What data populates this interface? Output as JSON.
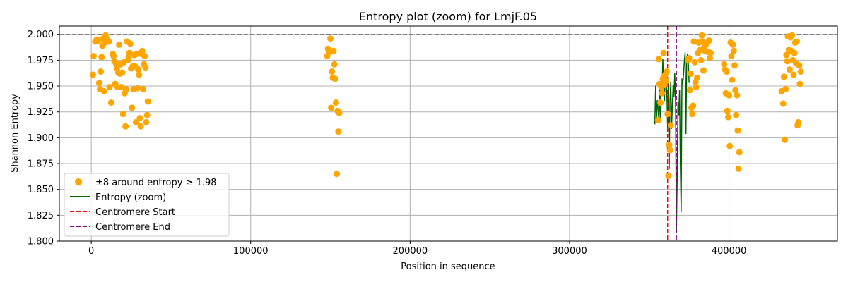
{
  "chart_data": {
    "type": "scatter",
    "title": "Entropy plot (zoom) for LmjF.05",
    "xlabel": "Position in sequence",
    "ylabel": "Shannon Entropy",
    "xlim": [
      -20000,
      468000
    ],
    "ylim": [
      1.8,
      2.008
    ],
    "xticks": [
      0,
      100000,
      200000,
      300000,
      400000
    ],
    "xtick_labels": [
      "0",
      "100000",
      "200000",
      "300000",
      "400000"
    ],
    "yticks": [
      1.8,
      1.825,
      1.85,
      1.875,
      1.9,
      1.925,
      1.95,
      1.975,
      2.0
    ],
    "ytick_labels": [
      "1.800",
      "1.825",
      "1.850",
      "1.875",
      "1.900",
      "1.925",
      "1.950",
      "1.975",
      "2.000"
    ],
    "grid": true,
    "legend_position": "lower-left",
    "colors": {
      "points": "#ffa500",
      "line": "#006400",
      "centromere_start": "#ff0000",
      "centromere_end": "#800080",
      "reference": "#808080",
      "grid": "#b0b0b0"
    },
    "reference_line": {
      "y": 2.0
    },
    "centromere": {
      "start": 361500,
      "end": 367000
    },
    "series": [
      {
        "name": "±8 around entropy ≥ 1.98",
        "kind": "scatter",
        "points": [
          [
            1000,
            1.961
          ],
          [
            1500,
            1.979
          ],
          [
            2500,
            1.993
          ],
          [
            3500,
            1.995
          ],
          [
            4500,
            1.994
          ],
          [
            5000,
            1.953
          ],
          [
            5500,
            1.947
          ],
          [
            6000,
            1.964
          ],
          [
            6500,
            1.978
          ],
          [
            7000,
            1.989
          ],
          [
            7500,
            1.996
          ],
          [
            8000,
            1.945
          ],
          [
            8500,
            1.992
          ],
          [
            9000,
            1.999
          ],
          [
            10000,
            1.995
          ],
          [
            11000,
            1.993
          ],
          [
            11500,
            1.949
          ],
          [
            12500,
            1.934
          ],
          [
            13500,
            1.981
          ],
          [
            14000,
            1.979
          ],
          [
            14500,
            1.974
          ],
          [
            15000,
            1.952
          ],
          [
            15500,
            1.972
          ],
          [
            16000,
            1.967
          ],
          [
            16500,
            1.949
          ],
          [
            17000,
            1.963
          ],
          [
            17500,
            1.99
          ],
          [
            18000,
            1.962
          ],
          [
            18500,
            1.971
          ],
          [
            19000,
            1.949
          ],
          [
            19500,
            1.963
          ],
          [
            20000,
            1.923
          ],
          [
            20500,
            1.973
          ],
          [
            21000,
            1.943
          ],
          [
            21500,
            1.911
          ],
          [
            22000,
            1.947
          ],
          [
            22500,
            1.993
          ],
          [
            23000,
            1.975
          ],
          [
            23500,
            1.978
          ],
          [
            24000,
            1.982
          ],
          [
            24500,
            1.991
          ],
          [
            25000,
            1.967
          ],
          [
            25500,
            1.929
          ],
          [
            26000,
            1.969
          ],
          [
            26500,
            1.947
          ],
          [
            27000,
            1.98
          ],
          [
            27500,
            1.969
          ],
          [
            28000,
            1.915
          ],
          [
            28500,
            1.981
          ],
          [
            29000,
            1.948
          ],
          [
            29500,
            1.966
          ],
          [
            30000,
            1.961
          ],
          [
            30500,
            1.919
          ],
          [
            31000,
            1.911
          ],
          [
            31500,
            1.981
          ],
          [
            32000,
            1.984
          ],
          [
            32500,
            1.947
          ],
          [
            33000,
            1.971
          ],
          [
            33500,
            1.979
          ],
          [
            34000,
            1.968
          ],
          [
            34500,
            1.915
          ],
          [
            35000,
            1.922
          ],
          [
            35500,
            1.935
          ],
          [
            148000,
            1.979
          ],
          [
            148500,
            1.986
          ],
          [
            149500,
            1.983
          ],
          [
            150000,
            1.996
          ],
          [
            150500,
            1.929
          ],
          [
            151000,
            1.964
          ],
          [
            151500,
            1.958
          ],
          [
            152000,
            1.984
          ],
          [
            152500,
            1.971
          ],
          [
            153000,
            1.957
          ],
          [
            153500,
            1.934
          ],
          [
            154000,
            1.865
          ],
          [
            154500,
            1.926
          ],
          [
            155000,
            1.906
          ],
          [
            155500,
            1.924
          ],
          [
            355500,
            1.917
          ],
          [
            356000,
            1.976
          ],
          [
            356500,
            1.952
          ],
          [
            357000,
            1.934
          ],
          [
            357500,
            1.949
          ],
          [
            358000,
            1.943
          ],
          [
            358500,
            1.957
          ],
          [
            359000,
            1.982
          ],
          [
            359500,
            1.951
          ],
          [
            360000,
            1.961
          ],
          [
            360500,
            1.955
          ],
          [
            361000,
            1.964
          ],
          [
            361500,
            1.923
          ],
          [
            362000,
            1.863
          ],
          [
            362500,
            1.893
          ],
          [
            363000,
            1.888
          ],
          [
            363500,
            1.912
          ],
          [
            374500,
            1.975
          ],
          [
            375000,
            1.977
          ],
          [
            375500,
            1.946
          ],
          [
            376000,
            1.962
          ],
          [
            376500,
            1.929
          ],
          [
            377000,
            1.923
          ],
          [
            377500,
            1.931
          ],
          [
            378000,
            1.993
          ],
          [
            378500,
            1.973
          ],
          [
            379000,
            1.954
          ],
          [
            379500,
            1.949
          ],
          [
            380000,
            1.958
          ],
          [
            380500,
            1.982
          ],
          [
            381000,
            1.992
          ],
          [
            382000,
            1.985
          ],
          [
            382500,
            1.975
          ],
          [
            383000,
            1.999
          ],
          [
            383500,
            1.993
          ],
          [
            384000,
            1.965
          ],
          [
            384500,
            1.988
          ],
          [
            385000,
            1.984
          ],
          [
            385500,
            1.99
          ],
          [
            386500,
            1.992
          ],
          [
            387000,
            1.983
          ],
          [
            387500,
            1.994
          ],
          [
            388000,
            1.977
          ],
          [
            388500,
            1.982
          ],
          [
            397000,
            1.971
          ],
          [
            397500,
            1.966
          ],
          [
            398000,
            1.943
          ],
          [
            398500,
            1.964
          ],
          [
            399000,
            1.926
          ],
          [
            399500,
            1.92
          ],
          [
            400000,
            1.941
          ],
          [
            400500,
            1.892
          ],
          [
            401000,
            1.992
          ],
          [
            401500,
            1.979
          ],
          [
            402000,
            1.956
          ],
          [
            402500,
            1.99
          ],
          [
            403000,
            1.984
          ],
          [
            403500,
            1.97
          ],
          [
            404000,
            1.946
          ],
          [
            404500,
            1.922
          ],
          [
            405000,
            1.941
          ],
          [
            405500,
            1.907
          ],
          [
            406000,
            1.87
          ],
          [
            406500,
            1.886
          ],
          [
            433000,
            1.945
          ],
          [
            434000,
            1.933
          ],
          [
            434500,
            1.959
          ],
          [
            435000,
            1.898
          ],
          [
            435500,
            1.947
          ],
          [
            436000,
            1.98
          ],
          [
            436500,
            1.974
          ],
          [
            437000,
            1.998
          ],
          [
            437500,
            1.985
          ],
          [
            438000,
            1.966
          ],
          [
            438500,
            1.997
          ],
          [
            439000,
            1.984
          ],
          [
            439500,
            1.999
          ],
          [
            440000,
            1.975
          ],
          [
            440500,
            1.961
          ],
          [
            441000,
            1.982
          ],
          [
            441500,
            1.992
          ],
          [
            442000,
            1.972
          ],
          [
            442500,
            1.993
          ],
          [
            443000,
            1.912
          ],
          [
            443500,
            1.915
          ],
          [
            444000,
            1.97
          ],
          [
            444500,
            1.952
          ],
          [
            445000,
            1.964
          ]
        ]
      },
      {
        "name": "Entropy (zoom)",
        "kind": "line",
        "points": [
          [
            353500,
            1.913
          ],
          [
            354000,
            1.95
          ],
          [
            354500,
            1.918
          ],
          [
            355000,
            1.936
          ],
          [
            355500,
            1.929
          ],
          [
            356000,
            1.917
          ],
          [
            356500,
            1.948
          ],
          [
            357000,
            1.918
          ],
          [
            357500,
            1.955
          ],
          [
            358000,
            1.942
          ],
          [
            358500,
            1.976
          ],
          [
            359000,
            1.951
          ],
          [
            359500,
            1.936
          ],
          [
            360000,
            1.958
          ],
          [
            360500,
            1.96
          ],
          [
            361000,
            1.946
          ],
          [
            361500,
            1.91
          ],
          [
            362000,
            1.952
          ],
          [
            362500,
            1.87
          ],
          [
            363000,
            1.935
          ],
          [
            363500,
            1.954
          ],
          [
            364000,
            1.909
          ],
          [
            364500,
            1.932
          ],
          [
            365000,
            1.951
          ],
          [
            365500,
            1.94
          ],
          [
            366000,
            1.962
          ],
          [
            366500,
            1.934
          ],
          [
            367000,
            1.808
          ],
          [
            367500,
            1.861
          ],
          [
            368000,
            1.935
          ],
          [
            368500,
            1.922
          ],
          [
            369000,
            1.946
          ],
          [
            369500,
            1.875
          ],
          [
            370000,
            1.829
          ],
          [
            370500,
            1.957
          ],
          [
            371000,
            1.952
          ],
          [
            371500,
            1.962
          ],
          [
            372000,
            1.974
          ],
          [
            372500,
            1.982
          ],
          [
            373000,
            1.904
          ],
          [
            373500,
            1.975
          ],
          [
            374000,
            1.981
          ],
          [
            374500,
            1.972
          ],
          [
            375000,
            1.953
          ]
        ]
      },
      {
        "name": "Centromere Start",
        "kind": "vline",
        "x": 361500
      },
      {
        "name": "Centromere End",
        "kind": "vline",
        "x": 367000
      }
    ]
  }
}
